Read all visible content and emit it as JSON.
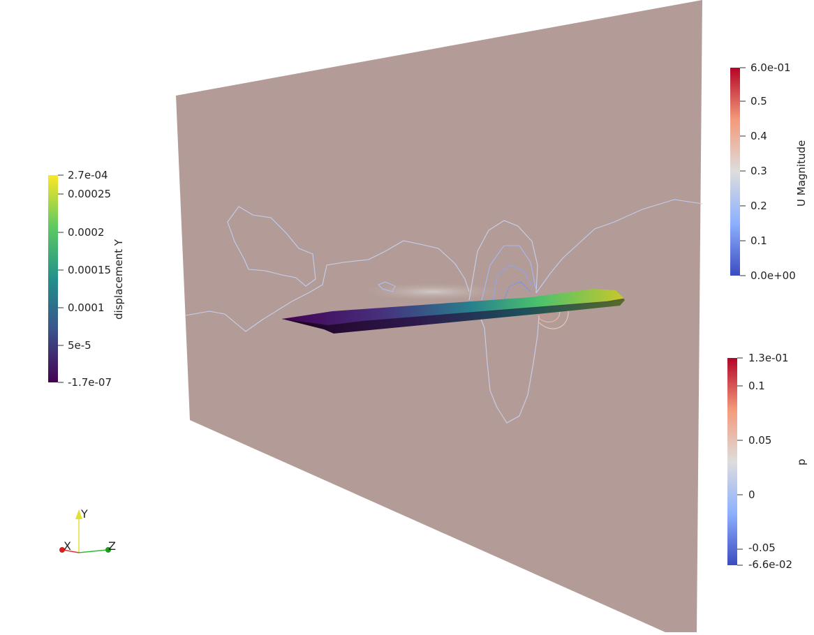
{
  "scene": {
    "plane_color": "#b39c97",
    "wing_colors": [
      "#440154",
      "#3b528b",
      "#21908c",
      "#5ec962",
      "#fde725"
    ]
  },
  "colorbars": {
    "displacement": {
      "title": "displacement Y",
      "colormap": "viridis",
      "min_label": "-1.7e-07",
      "max_label": "2.7e-04",
      "ticks": [
        "0.00025",
        "0.0002",
        "0.00015",
        "0.0001",
        "5e-5"
      ]
    },
    "umag": {
      "title": "U Magnitude",
      "colormap": "cool-to-warm",
      "min_label": "0.0e+00",
      "max_label": "6.0e-01",
      "ticks": [
        "0.5",
        "0.4",
        "0.3",
        "0.2",
        "0.1"
      ]
    },
    "pressure": {
      "title": "p",
      "colormap": "cool-to-warm",
      "min_label": "-6.6e-02",
      "max_label": "1.3e-01",
      "ticks": [
        "0.1",
        "0.05",
        "0",
        "-0.05"
      ]
    }
  },
  "orientation_axes": {
    "x_label": "X",
    "y_label": "Y",
    "z_label": "Z",
    "x_color": "#e8302a",
    "y_color": "#e0e030",
    "z_color": "#2fb82f"
  }
}
